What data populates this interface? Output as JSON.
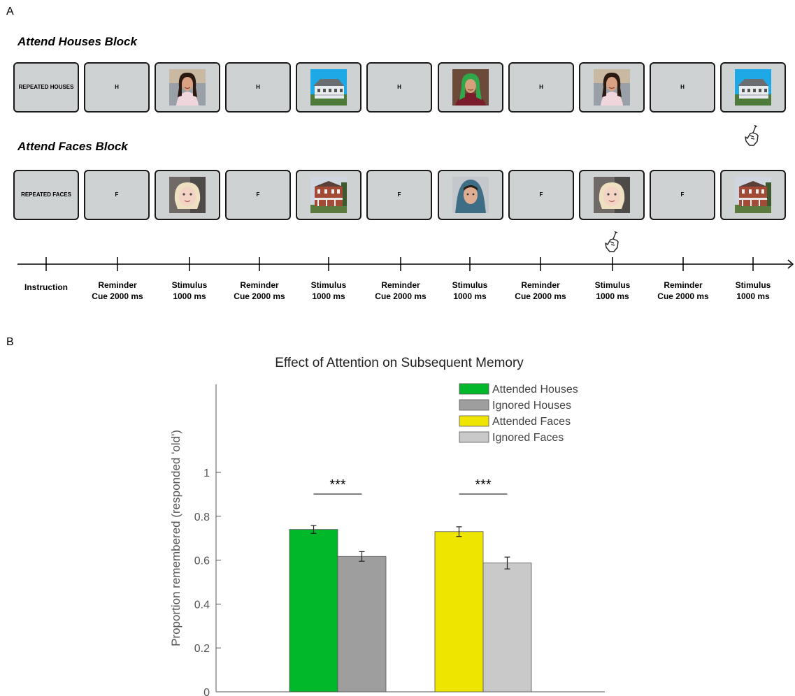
{
  "panel_a": {
    "label": "A",
    "houses_block": {
      "title": "Attend Houses Block",
      "frames": [
        {
          "kind": "text",
          "text": "REPEATED HOUSES"
        },
        {
          "kind": "text",
          "text": "H"
        },
        {
          "kind": "image",
          "icon": "face-woman-icon"
        },
        {
          "kind": "text",
          "text": "H"
        },
        {
          "kind": "image",
          "icon": "house-white-icon"
        },
        {
          "kind": "text",
          "text": "H"
        },
        {
          "kind": "image",
          "icon": "face-old-woman-icon"
        },
        {
          "kind": "text",
          "text": "H"
        },
        {
          "kind": "image",
          "icon": "face-woman-icon"
        },
        {
          "kind": "text",
          "text": "H"
        },
        {
          "kind": "image",
          "icon": "house-white-icon"
        }
      ],
      "response_icon": "pointing-hand-icon"
    },
    "faces_block": {
      "title": "Attend Faces Block",
      "frames": [
        {
          "kind": "text",
          "text": "REPEATED FACES"
        },
        {
          "kind": "text",
          "text": "F"
        },
        {
          "kind": "image",
          "icon": "face-child-icon"
        },
        {
          "kind": "text",
          "text": "F"
        },
        {
          "kind": "image",
          "icon": "house-brick-icon"
        },
        {
          "kind": "text",
          "text": "F"
        },
        {
          "kind": "image",
          "icon": "face-hooded-man-icon"
        },
        {
          "kind": "text",
          "text": "F"
        },
        {
          "kind": "image",
          "icon": "face-child-icon"
        },
        {
          "kind": "text",
          "text": "F"
        },
        {
          "kind": "image",
          "icon": "house-brick-icon"
        }
      ],
      "response_icon": "pointing-hand-icon"
    },
    "timeline": [
      {
        "line1": "Instruction",
        "line2": ""
      },
      {
        "line1": "Reminder",
        "line2": "Cue 2000 ms"
      },
      {
        "line1": "Stimulus",
        "line2": "1000 ms"
      },
      {
        "line1": "Reminder",
        "line2": "Cue 2000 ms"
      },
      {
        "line1": "Stimulus",
        "line2": "1000 ms"
      },
      {
        "line1": "Reminder",
        "line2": "Cue 2000 ms"
      },
      {
        "line1": "Stimulus",
        "line2": "1000 ms"
      },
      {
        "line1": "Reminder",
        "line2": "Cue 2000 ms"
      },
      {
        "line1": "Stimulus",
        "line2": "1000 ms"
      },
      {
        "line1": "Reminder",
        "line2": "Cue 2000 ms"
      },
      {
        "line1": "Stimulus",
        "line2": "1000 ms"
      }
    ]
  },
  "panel_b": {
    "label": "B",
    "chart_data": {
      "type": "bar",
      "title": "Effect of Attention on Subsequent Memory",
      "ylabel": "Proportion remembered (responded 'old')",
      "xlabel": "",
      "ylim": [
        0,
        1.4
      ],
      "yticks": [
        0,
        0.2,
        0.4,
        0.6,
        0.8,
        1
      ],
      "ytick_labels": [
        "0",
        "0.2",
        "0.4",
        "0.6",
        "0.8",
        "1"
      ],
      "legend_position": "top-right",
      "series": [
        {
          "name": "Attended Houses",
          "value": 0.74,
          "error": 0.018,
          "color": "#00b82a"
        },
        {
          "name": "Ignored Houses",
          "value": 0.617,
          "error": 0.022,
          "color": "#9e9e9e"
        },
        {
          "name": "Attended Faces",
          "value": 0.73,
          "error": 0.022,
          "color": "#eee600"
        },
        {
          "name": "Ignored Faces",
          "value": 0.587,
          "error": 0.027,
          "color": "#c9c9c9"
        }
      ],
      "significance": [
        {
          "label": "***",
          "pair": [
            0,
            1
          ]
        },
        {
          "label": "***",
          "pair": [
            2,
            3
          ]
        }
      ]
    }
  }
}
